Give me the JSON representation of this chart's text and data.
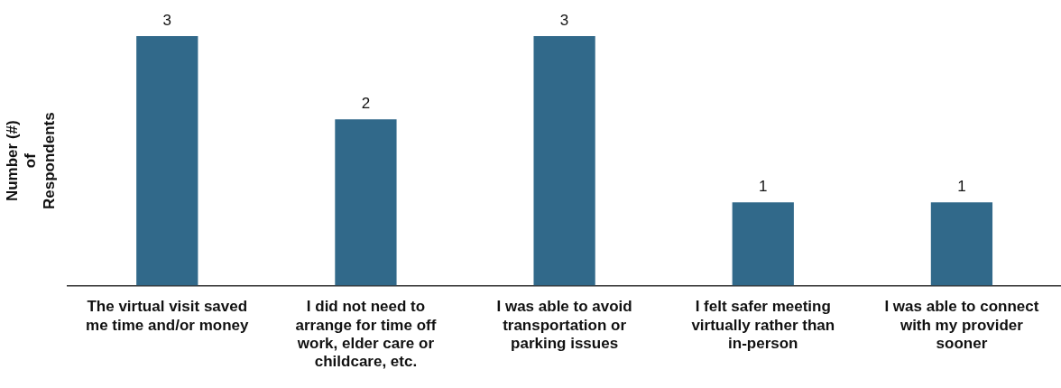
{
  "chart_data": {
    "type": "bar",
    "ylabel": "Number (#) of Respondents",
    "categories": [
      "The virtual visit saved me time and/or money",
      "I did not need to arrange for time off work, elder care or childcare, etc.",
      "I was able to avoid transportation or parking issues",
      "I felt safer meeting virtually rather than in-person",
      "I was able to connect with my provider sooner"
    ],
    "values": [
      3,
      2,
      3,
      1,
      1
    ],
    "color": "#31698a",
    "ylim": [
      0,
      3
    ],
    "tick_labels": "x",
    "grid": false,
    "legend": false,
    "data_labels": true
  }
}
